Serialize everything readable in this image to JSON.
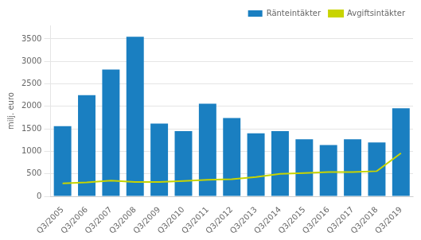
{
  "chart_data": {
    "type": "bar",
    "ylabel": "milj. euro",
    "categories": [
      "Q3/2005",
      "Q3/2006",
      "Q3/2007",
      "Q3/2008",
      "Q3/2009",
      "Q3/2010",
      "Q3/2011",
      "Q3/2012",
      "Q3/2013",
      "Q3/2014",
      "Q3/2015",
      "Q3/2016",
      "Q3/2017",
      "Q3/2018",
      "Q3/2019"
    ],
    "series": [
      {
        "name": "Räntein­täkter",
        "type": "bar",
        "color": "#1a7fc1",
        "values": [
          1560,
          2250,
          2820,
          3550,
          1620,
          1450,
          2060,
          1740,
          1400,
          1450,
          1270,
          1140,
          1270,
          1200,
          1960
        ]
      },
      {
        "name": "Avgiftsintäkter",
        "type": "line",
        "color": "#c8d400",
        "values": [
          290,
          310,
          350,
          320,
          320,
          340,
          370,
          380,
          430,
          500,
          520,
          540,
          540,
          560,
          960
        ]
      }
    ],
    "ylim": [
      0,
      3800
    ],
    "yticks": [
      0,
      500,
      1000,
      1500,
      2000,
      2500,
      3000,
      3500
    ],
    "grid": true,
    "legend": "upper right"
  }
}
